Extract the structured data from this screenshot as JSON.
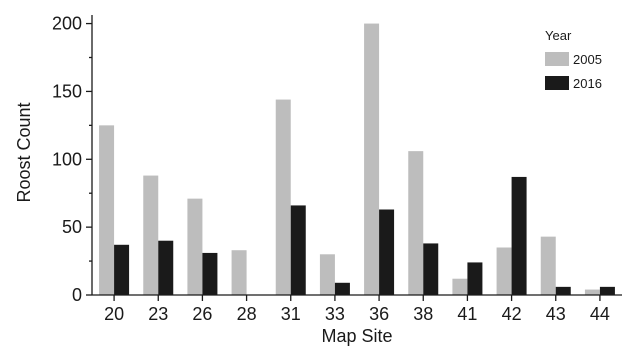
{
  "chart_data": {
    "type": "bar",
    "xlabel": "Map Site",
    "ylabel": "Roost Count",
    "ylim": [
      0,
      210
    ],
    "yticks": [
      0,
      50,
      100,
      150,
      200
    ],
    "categories": [
      "20",
      "23",
      "26",
      "28",
      "31",
      "33",
      "36",
      "38",
      "41",
      "42",
      "43",
      "44"
    ],
    "legend_title": "Year",
    "legend_position": "top-right",
    "grid": false,
    "series": [
      {
        "name": "2005",
        "color": "#bdbdbd",
        "values": [
          125,
          88,
          71,
          33,
          144,
          30,
          200,
          106,
          12,
          35,
          43,
          4
        ]
      },
      {
        "name": "2016",
        "color": "#1a1a1a",
        "values": [
          37,
          40,
          31,
          0,
          66,
          9,
          63,
          38,
          24,
          87,
          6,
          6
        ]
      }
    ]
  }
}
